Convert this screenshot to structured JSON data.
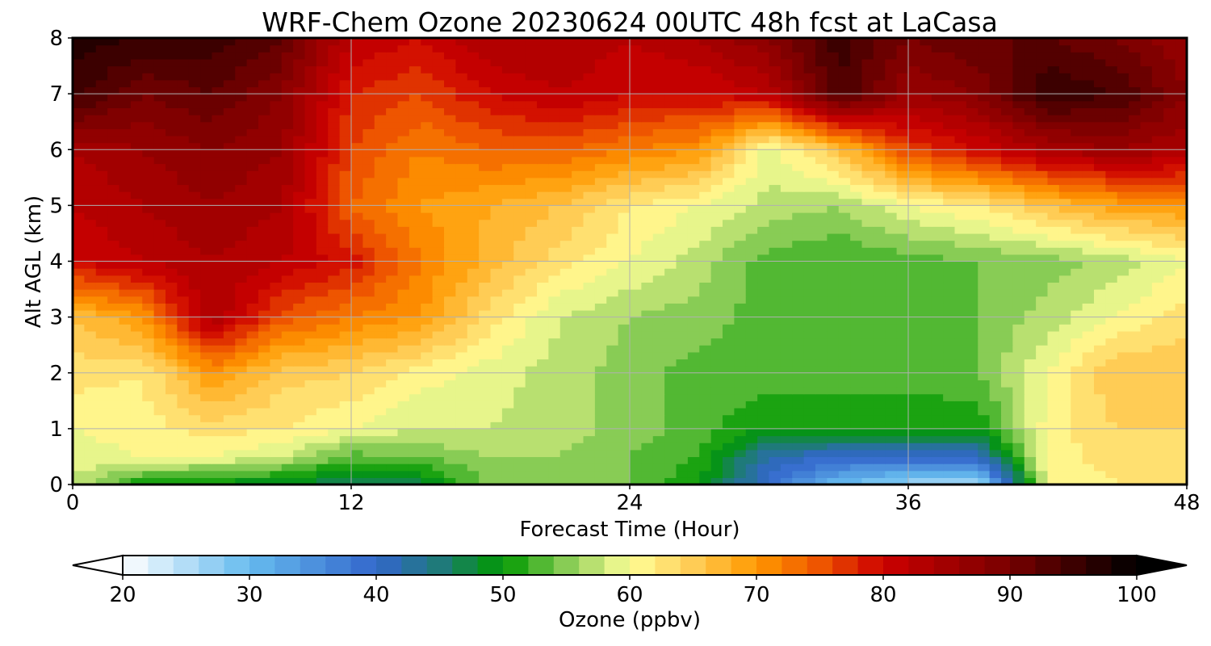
{
  "chart_data": {
    "type": "heatmap",
    "title": "WRF-Chem Ozone  20230624 00UTC 48h fcst at LaCasa",
    "xlabel": "Forecast Time (Hour)",
    "ylabel": "Alt AGL (km)",
    "xlim": [
      0,
      48
    ],
    "ylim": [
      0,
      8
    ],
    "x_ticks": [
      0,
      12,
      24,
      36,
      48
    ],
    "y_ticks": [
      0,
      1,
      2,
      3,
      4,
      5,
      6,
      7,
      8
    ],
    "x_tick_labels": [
      "0",
      "12",
      "24",
      "36",
      "48"
    ],
    "y_tick_labels": [
      "0",
      "1",
      "2",
      "3",
      "4",
      "5",
      "6",
      "7",
      "8"
    ],
    "grid": true,
    "z_unit_label": "Ozone  (ppbv)",
    "colorbar": {
      "min": 20,
      "max": 100,
      "extend": "both",
      "ticks": [
        20,
        30,
        40,
        50,
        60,
        70,
        80,
        90,
        100
      ],
      "tick_labels": [
        "20",
        "30",
        "40",
        "50",
        "60",
        "70",
        "80",
        "90",
        "100"
      ],
      "color_stops": [
        [
          20,
          "#ffffff"
        ],
        [
          30,
          "#66bbee"
        ],
        [
          40,
          "#3366cc"
        ],
        [
          45,
          "#1f7a7a"
        ],
        [
          50,
          "#009900"
        ],
        [
          55,
          "#88cc55"
        ],
        [
          60,
          "#ffff99"
        ],
        [
          65,
          "#ffcc55"
        ],
        [
          70,
          "#ff9900"
        ],
        [
          75,
          "#ee5500"
        ],
        [
          80,
          "#cc0000"
        ],
        [
          90,
          "#770000"
        ],
        [
          100,
          "#000000"
        ]
      ]
    },
    "grid_x": [
      0,
      3,
      6,
      9,
      12,
      15,
      18,
      21,
      24,
      27,
      30,
      33,
      36,
      39,
      42,
      45,
      48
    ],
    "grid_y": [
      0,
      0.5,
      1,
      2,
      3,
      4,
      5,
      6,
      7,
      8
    ],
    "z": [
      [
        58,
        50,
        49,
        48,
        46,
        47,
        55,
        56,
        54,
        50,
        39,
        30,
        26,
        25,
        60,
        62,
        63
      ],
      [
        59,
        60,
        60,
        58,
        53,
        54,
        56,
        56,
        54,
        52,
        42,
        40,
        40,
        40,
        61,
        63,
        64
      ],
      [
        60,
        61,
        63,
        62,
        60,
        58,
        58,
        57,
        55,
        53,
        50,
        50,
        50,
        50,
        61,
        64,
        64
      ],
      [
        63,
        62,
        70,
        65,
        64,
        61,
        59,
        57,
        55,
        53,
        53,
        53,
        53,
        54,
        60,
        66,
        66
      ],
      [
        66,
        70,
        84,
        75,
        72,
        70,
        63,
        58,
        56,
        55,
        53,
        53,
        53,
        54,
        57,
        60,
        63
      ],
      [
        80,
        82,
        84,
        82,
        79,
        72,
        67,
        63,
        60,
        57,
        53,
        52,
        53,
        54,
        55,
        57,
        60
      ],
      [
        82,
        84,
        86,
        84,
        74,
        70,
        68,
        66,
        62,
        60,
        57,
        56,
        60,
        62,
        66,
        69,
        70
      ],
      [
        84,
        86,
        88,
        86,
        76,
        72,
        74,
        74,
        72,
        70,
        59,
        66,
        76,
        80,
        84,
        86,
        84
      ],
      [
        95,
        90,
        92,
        88,
        78,
        76,
        80,
        82,
        80,
        80,
        82,
        94,
        86,
        88,
        96,
        94,
        88
      ],
      [
        97,
        96,
        95,
        92,
        82,
        80,
        84,
        84,
        82,
        84,
        88,
        95,
        90,
        92,
        92,
        90,
        86
      ]
    ]
  }
}
